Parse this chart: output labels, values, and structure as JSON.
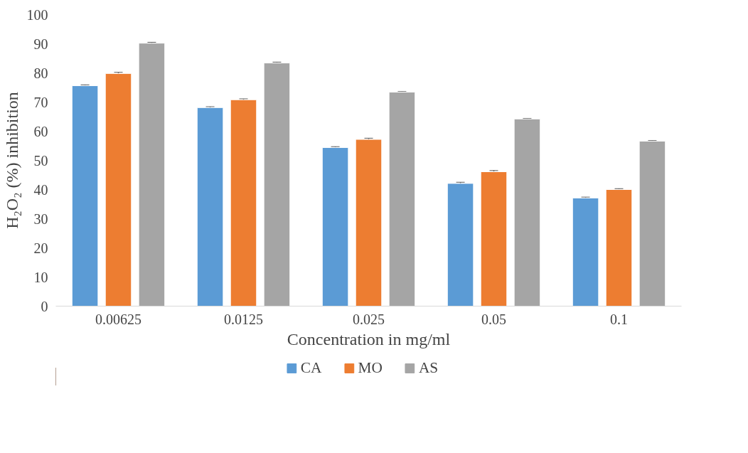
{
  "chart_data": {
    "type": "bar",
    "xlabel": "Concentration in mg/ml",
    "ylabel": "H₂O₂ (%) inhibition",
    "categories": [
      "0.00625",
      "0.0125",
      "0.025",
      "0.05",
      "0.1"
    ],
    "series": [
      {
        "name": "CA",
        "color": "#5b9bd5",
        "values": [
          75.6,
          68.1,
          54.4,
          42.1,
          37.1
        ],
        "errors": [
          0.3,
          0.3,
          0.3,
          0.4,
          0.3
        ]
      },
      {
        "name": "MO",
        "color": "#ed7d31",
        "values": [
          79.8,
          70.8,
          57.2,
          46.1,
          40.0
        ],
        "errors": [
          0.4,
          0.3,
          0.4,
          0.4,
          0.3
        ]
      },
      {
        "name": "AS",
        "color": "#a5a5a5",
        "values": [
          90.2,
          83.4,
          73.4,
          64.2,
          56.6
        ],
        "errors": [
          0.3,
          0.3,
          0.2,
          0.2,
          0.2
        ]
      }
    ],
    "ylim": [
      0,
      100
    ],
    "yticks": [
      0,
      10,
      20,
      30,
      40,
      50,
      60,
      70,
      80,
      90,
      100
    ],
    "grid": false,
    "legend": "bottom"
  }
}
